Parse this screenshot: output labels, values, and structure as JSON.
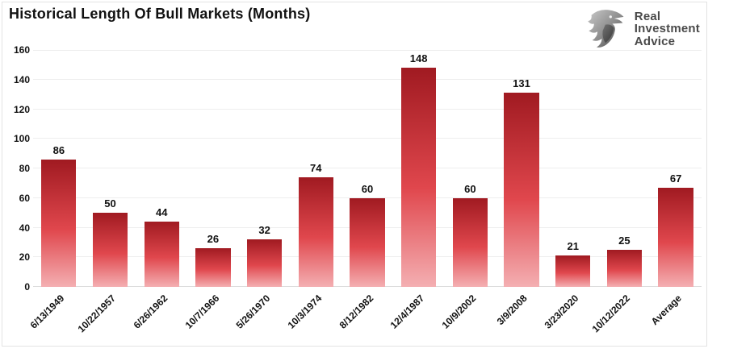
{
  "header": {
    "logo": {
      "icon": "eagle-icon",
      "line1": "Real",
      "line2": "Investment",
      "line3": "Advice",
      "text_color": "#4a4a4a"
    }
  },
  "chart_data": {
    "type": "bar",
    "title": "Historical Length Of Bull Markets (Months)",
    "categories": [
      "6/13/1949",
      "10/22/1957",
      "6/26/1962",
      "10/7/1966",
      "5/26/1970",
      "10/3/1974",
      "8/12/1982",
      "12/4/1987",
      "10/9/2002",
      "3/9/2008",
      "3/23/2020",
      "10/12/2022",
      "Average"
    ],
    "values": [
      86,
      50,
      44,
      26,
      32,
      74,
      60,
      148,
      60,
      131,
      21,
      25,
      67
    ],
    "xlabel": "",
    "ylabel": "",
    "ylim": [
      0,
      160
    ],
    "ytick_step": 20,
    "grid": "horizontal",
    "legend": false,
    "value_labels": true,
    "bar_gradient_top": "#a01a21",
    "bar_gradient_mid": "#e0474d",
    "bar_gradient_bottom": "#f4afb2",
    "gridline_color": "#ededed",
    "axis_label_color": "#111111"
  }
}
